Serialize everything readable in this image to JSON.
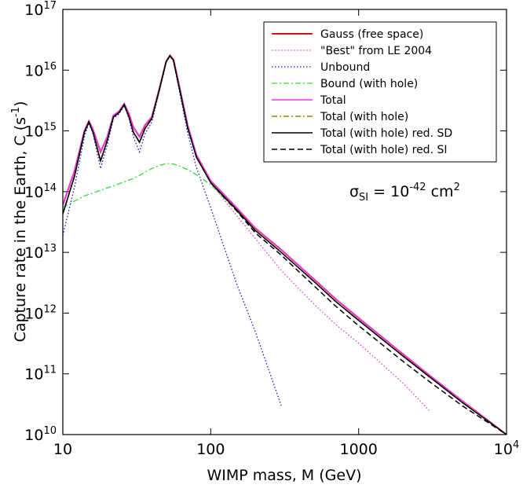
{
  "chart_data": {
    "type": "line",
    "xlabel": "WIMP mass, M (GeV)",
    "ylabel": "Capture rate in the Earth, C (s^{-1})",
    "annotation": "σ_{SI} = 10^{-42} cm^{2}",
    "xscale": "log",
    "yscale": "log",
    "xlim": [
      10,
      10000
    ],
    "ylim": [
      10000000000.0,
      1e+17
    ],
    "xticks": [
      10,
      100,
      1000,
      {
        "value": 10000,
        "label": "10^{4}"
      }
    ],
    "yticks": [
      {
        "value": 10000000000.0,
        "label": "10^{10}"
      },
      {
        "value": 100000000000.0,
        "label": "10^{11}"
      },
      {
        "value": 1000000000000.0,
        "label": "10^{12}"
      },
      {
        "value": 10000000000000.0,
        "label": "10^{13}"
      },
      {
        "value": 100000000000000.0,
        "label": "10^{14}"
      },
      {
        "value": 1000000000000000.0,
        "label": "10^{15}"
      },
      {
        "value": 1e+16,
        "label": "10^{16}"
      },
      {
        "value": 1e+17,
        "label": "10^{17}"
      }
    ],
    "legend": "upper right",
    "x": [
      10,
      12,
      14,
      15,
      16,
      18,
      20,
      22,
      24,
      26,
      28,
      30,
      33,
      36,
      40,
      45,
      50,
      53,
      56,
      60,
      70,
      80,
      100,
      150,
      200,
      300,
      500,
      700,
      1000,
      2000,
      3000,
      5000,
      10000
    ],
    "series": [
      {
        "name": "Gauss (free space)",
        "color": "#dd1111",
        "linestyle": "solid",
        "width": 2,
        "values": [
          60000000000000.0,
          220000000000000.0,
          1000000000000000.0,
          1450000000000000.0,
          1050000000000000.0,
          450000000000000.0,
          800000000000000.0,
          1800000000000000.0,
          2100000000000000.0,
          2800000000000000.0,
          1900000000000000.0,
          1150000000000000.0,
          800000000000000.0,
          1250000000000000.0,
          1700000000000000.0,
          5000000000000000.0,
          1.4e+16,
          1.75e+16,
          1.5e+16,
          7000000000000000.0,
          1200000000000000.0,
          400000000000000.0,
          150000000000000.0,
          54000000000000.0,
          25000000000000.0,
          11000000000000.0,
          3600000000000.0,
          1700000000000.0,
          830000000000.0,
          210000000000.0,
          95000000000.0,
          36000000000.0,
          10000000000.0
        ]
      },
      {
        "name": "\"Best\" from LE 2004",
        "color": "#ee33ee",
        "linestyle": "dotted",
        "width": 1.3,
        "values": [
          60000000000000.0,
          220000000000000.0,
          1000000000000000.0,
          1450000000000000.0,
          1050000000000000.0,
          450000000000000.0,
          800000000000000.0,
          1800000000000000.0,
          2100000000000000.0,
          2800000000000000.0,
          1900000000000000.0,
          1150000000000000.0,
          800000000000000.0,
          1250000000000000.0,
          1700000000000000.0,
          5000000000000000.0,
          1.4e+16,
          1.75e+16,
          1.5e+16,
          7000000000000000.0,
          1200000000000000.0,
          400000000000000.0,
          140000000000000.0,
          40000000000000.0,
          17000000000000.0,
          5000000000000.0,
          1400000000000.0,
          650000000000.0,
          320000000000.0,
          70000000000.0,
          25000000000.0,
          null,
          null
        ]
      },
      {
        "name": "Unbound",
        "color": "#1111dd",
        "linestyle": "dotted",
        "width": 1.3,
        "values": [
          19000000000000.0,
          120000000000000.0,
          800000000000000.0,
          1350000000000000.0,
          900000000000000.0,
          240000000000000.0,
          600000000000000.0,
          1600000000000000.0,
          1900000000000000.0,
          2600000000000000.0,
          1600000000000000.0,
          800000000000000.0,
          450000000000000.0,
          900000000000000.0,
          1400000000000000.0,
          4600000000000000.0,
          1.35e+16,
          1.7e+16,
          1.4e+16,
          6000000000000000.0,
          900000000000000.0,
          250000000000000.0,
          54000000000000.0,
          3000000000000.0,
          500000000000.0,
          30000000000.0,
          null,
          null,
          null,
          null,
          null,
          null,
          null
        ]
      },
      {
        "name": "Bound (with hole)",
        "color": "#33dd33",
        "linestyle": "dashdot",
        "width": 1.3,
        "values": [
          55000000000000.0,
          70000000000000.0,
          85000000000000.0,
          90000000000000.0,
          95000000000000.0,
          105000000000000.0,
          115000000000000.0,
          125000000000000.0,
          135000000000000.0,
          145000000000000.0,
          155000000000000.0,
          165000000000000.0,
          185000000000000.0,
          210000000000000.0,
          240000000000000.0,
          270000000000000.0,
          290000000000000.0,
          290000000000000.0,
          285000000000000.0,
          270000000000000.0,
          230000000000000.0,
          190000000000000.0,
          130000000000000.0,
          48000000000000.0,
          22000000000000.0,
          null,
          null,
          null,
          null,
          null,
          null,
          null,
          null
        ]
      },
      {
        "name": "Total",
        "color": "#ee33ee",
        "linestyle": "solid",
        "width": 1.5,
        "values": [
          60000000000000.0,
          220000000000000.0,
          1000000000000000.0,
          1450000000000000.0,
          1050000000000000.0,
          450000000000000.0,
          800000000000000.0,
          1800000000000000.0,
          2100000000000000.0,
          2800000000000000.0,
          1900000000000000.0,
          1150000000000000.0,
          800000000000000.0,
          1250000000000000.0,
          1700000000000000.0,
          5000000000000000.0,
          1.4e+16,
          1.75e+16,
          1.5e+16,
          7000000000000000.0,
          1200000000000000.0,
          400000000000000.0,
          150000000000000.0,
          54000000000000.0,
          25000000000000.0,
          11000000000000.0,
          3600000000000.0,
          1700000000000.0,
          830000000000.0,
          210000000000.0,
          95000000000.0,
          36000000000.0,
          10000000000.0
        ]
      },
      {
        "name": "Total (with hole)",
        "color": "#998800",
        "linestyle": "dashdot",
        "width": 1.5,
        "values": [
          43000000000000.0,
          180000000000000.0,
          950000000000000.0,
          1400000000000000.0,
          950000000000000.0,
          320000000000000.0,
          700000000000000.0,
          1700000000000000.0,
          2000000000000000.0,
          2700000000000000.0,
          1700000000000000.0,
          950000000000000.0,
          650000000000000.0,
          1100000000000000.0,
          1600000000000000.0,
          4800000000000000.0,
          1.38e+16,
          1.72e+16,
          1.45e+16,
          6500000000000000.0,
          1100000000000000.0,
          370000000000000.0,
          140000000000000.0,
          50000000000000.0,
          23000000000000.0,
          10000000000000.0,
          3300000000000.0,
          1550000000000.0,
          760000000000.0,
          195000000000.0,
          90000000000.0,
          34000000000.0,
          10000000000.0
        ]
      },
      {
        "name": "Total (with hole) red. SD",
        "color": "#000000",
        "linestyle": "solid",
        "width": 1.5,
        "values": [
          43000000000000.0,
          180000000000000.0,
          950000000000000.0,
          1400000000000000.0,
          950000000000000.0,
          320000000000000.0,
          700000000000000.0,
          1700000000000000.0,
          2000000000000000.0,
          2700000000000000.0,
          1700000000000000.0,
          950000000000000.0,
          650000000000000.0,
          1100000000000000.0,
          1600000000000000.0,
          4800000000000000.0,
          1.38e+16,
          1.72e+16,
          1.45e+16,
          6500000000000000.0,
          1100000000000000.0,
          370000000000000.0,
          140000000000000.0,
          50000000000000.0,
          23000000000000.0,
          10000000000000.0,
          3300000000000.0,
          1550000000000.0,
          760000000000.0,
          195000000000.0,
          90000000000.0,
          34000000000.0,
          10000000000.0
        ]
      },
      {
        "name": "Total (with hole) red. SI",
        "color": "#000000",
        "linestyle": "dashed",
        "width": 1.5,
        "values": [
          43000000000000.0,
          180000000000000.0,
          950000000000000.0,
          1400000000000000.0,
          950000000000000.0,
          320000000000000.0,
          700000000000000.0,
          1700000000000000.0,
          2000000000000000.0,
          2700000000000000.0,
          1700000000000000.0,
          950000000000000.0,
          650000000000000.0,
          1100000000000000.0,
          1600000000000000.0,
          4800000000000000.0,
          1.38e+16,
          1.72e+16,
          1.45e+16,
          6500000000000000.0,
          1100000000000000.0,
          370000000000000.0,
          140000000000000.0,
          48000000000000.0,
          21000000000000.0,
          9000000000000.0,
          2800000000000.0,
          1300000000000.0,
          620000000000.0,
          160000000000.0,
          75000000000.0,
          30000000000.0,
          10000000000.0
        ]
      }
    ]
  }
}
